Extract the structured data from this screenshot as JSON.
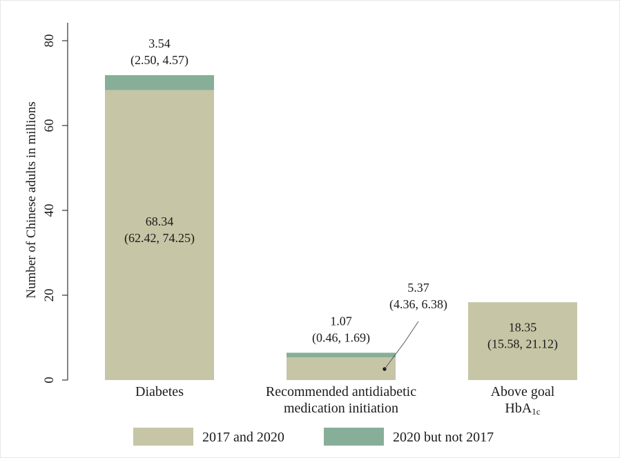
{
  "colors": {
    "series_2017_and_2020": "#c6c5a6",
    "series_2020_not_2017": "#86ae98",
    "axis": "#333333",
    "text": "#1a1a1a"
  },
  "chart_data": {
    "type": "bar",
    "stacked": true,
    "title": "",
    "xlabel": "",
    "ylabel": "Number of Chinese adults in millions",
    "ylim": [
      0,
      80
    ],
    "yticks": [
      "0",
      "20",
      "40",
      "60",
      "80"
    ],
    "grid": false,
    "legend_position": "bottom",
    "categories": [
      {
        "line1": "Diabetes",
        "line2": "",
        "line3_main": "",
        "line3_sub": ""
      },
      {
        "line1": "Recommended antidiabetic",
        "line2": "medication initiation",
        "line3_main": "",
        "line3_sub": ""
      },
      {
        "line1": "Above goal",
        "line2": "",
        "line3_main": "HbA",
        "line3_sub": "1c"
      }
    ],
    "series": [
      {
        "name": "2017 and 2020",
        "values": [
          68.34,
          5.37,
          18.35
        ]
      },
      {
        "name": "2020 but not 2017",
        "values": [
          3.54,
          1.07,
          0
        ]
      }
    ],
    "annotations": [
      {
        "bar": 0,
        "series": 0,
        "value": "68.34",
        "ci": "(62.42, 74.25)"
      },
      {
        "bar": 0,
        "series": 1,
        "value": "3.54",
        "ci": "(2.50, 4.57)"
      },
      {
        "bar": 1,
        "series": 1,
        "value": "1.07",
        "ci": "(0.46, 1.69)"
      },
      {
        "bar": 1,
        "series": 0,
        "value": "5.37",
        "ci": "(4.36, 6.38)",
        "callout": true
      },
      {
        "bar": 2,
        "series": 0,
        "value": "18.35",
        "ci": "(15.58, 21.12)"
      }
    ]
  }
}
